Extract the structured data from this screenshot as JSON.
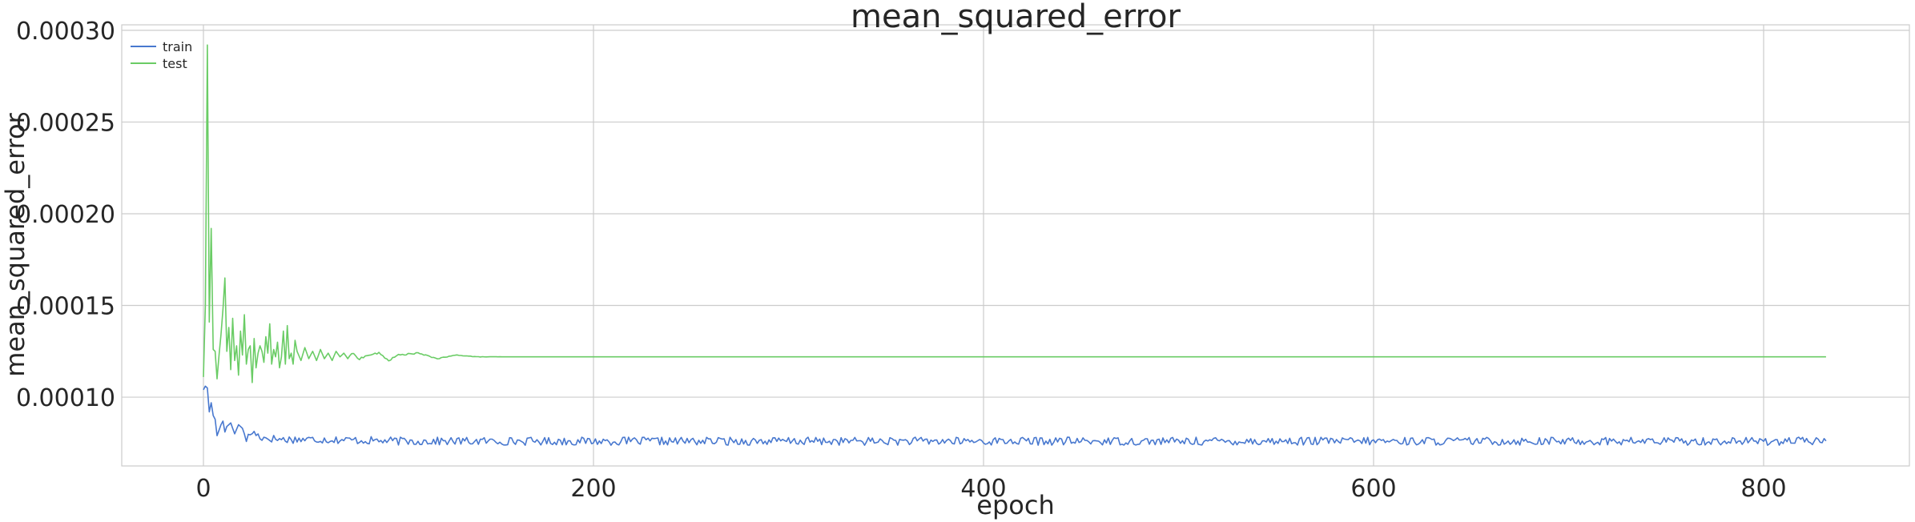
{
  "chart_data": {
    "type": "line",
    "title": "mean_squared_error",
    "xlabel": "epoch",
    "ylabel": "mean_squared_error",
    "xlim": [
      -52,
      2290
    ],
    "ylim": [
      6.25e-05,
      0.000303
    ],
    "x_ticks": [
      0,
      200,
      400,
      600,
      800
    ],
    "x_tick_labels": [
      "0",
      "200",
      "400",
      "600",
      "800"
    ],
    "y_ticks": [
      0.0001,
      0.00015,
      0.0002,
      0.00025,
      0.0003
    ],
    "y_tick_labels": [
      "0.00010",
      "0.00015",
      "0.00020",
      "0.00025",
      "0.00030"
    ],
    "grid": true,
    "legend_position": "top-left",
    "n_epochs": 833,
    "series": [
      {
        "name": "train",
        "color": "#4878cf",
        "keypoints": [
          [
            0,
            0.000104
          ],
          [
            1,
            0.000106
          ],
          [
            2,
            0.000105
          ],
          [
            3,
            9.2e-05
          ],
          [
            4,
            9.7e-05
          ],
          [
            5,
            9e-05
          ],
          [
            6,
            8.8e-05
          ],
          [
            7,
            7.9e-05
          ],
          [
            8,
            8.2e-05
          ],
          [
            9,
            8.5e-05
          ],
          [
            10,
            8.7e-05
          ],
          [
            11,
            8.1e-05
          ],
          [
            12,
            8.4e-05
          ],
          [
            14,
            8.6e-05
          ],
          [
            16,
            8e-05
          ],
          [
            18,
            8.5e-05
          ],
          [
            20,
            8.3e-05
          ],
          [
            22,
            7.7e-05
          ],
          [
            25,
            8.1e-05
          ],
          [
            30,
            7.8e-05
          ],
          [
            40,
            7.7e-05
          ],
          [
            60,
            7.7e-05
          ],
          [
            100,
            7.6e-05
          ],
          [
            200,
            7.6e-05
          ],
          [
            400,
            7.6e-05
          ],
          [
            600,
            7.6e-05
          ],
          [
            832,
            7.6e-05
          ]
        ],
        "noise_amplitude": 2.2e-06
      },
      {
        "name": "test",
        "color": "#6acc65",
        "keypoints": [
          [
            0,
            0.000111
          ],
          [
            1,
            0.00015
          ],
          [
            2,
            0.000292
          ],
          [
            3,
            0.000141
          ],
          [
            4,
            0.000192
          ],
          [
            5,
            0.000126
          ],
          [
            6,
            0.000125
          ],
          [
            7,
            0.00011
          ],
          [
            8,
            0.000123
          ],
          [
            9,
            0.000134
          ],
          [
            10,
            0.000148
          ],
          [
            11,
            0.000165
          ],
          [
            12,
            0.000125
          ],
          [
            13,
            0.000138
          ],
          [
            14,
            0.000115
          ],
          [
            15,
            0.000143
          ],
          [
            16,
            0.00012
          ],
          [
            17,
            0.000128
          ],
          [
            18,
            0.000112
          ],
          [
            19,
            0.000136
          ],
          [
            20,
            0.000123
          ],
          [
            21,
            0.000145
          ],
          [
            22,
            0.000118
          ],
          [
            23,
            0.000126
          ],
          [
            24,
            0.000128
          ],
          [
            25,
            0.000108
          ],
          [
            26,
            0.000132
          ],
          [
            27,
            0.000116
          ],
          [
            28,
            0.000124
          ],
          [
            29,
            0.000128
          ],
          [
            30,
            0.000125
          ],
          [
            31,
            0.000119
          ],
          [
            32,
            0.000133
          ],
          [
            33,
            0.000124
          ],
          [
            34,
            0.00014
          ],
          [
            35,
            0.000118
          ],
          [
            36,
            0.000126
          ],
          [
            37,
            0.000122
          ],
          [
            38,
            0.00013
          ],
          [
            39,
            0.000116
          ],
          [
            40,
            0.000122
          ],
          [
            41,
            0.000136
          ],
          [
            42,
            0.000118
          ],
          [
            43,
            0.000139
          ],
          [
            44,
            0.000121
          ],
          [
            45,
            0.000124
          ],
          [
            46,
            0.000118
          ],
          [
            47,
            0.000131
          ],
          [
            48,
            0.000125
          ],
          [
            50,
            0.00012
          ],
          [
            52,
            0.000127
          ],
          [
            54,
            0.000121
          ],
          [
            56,
            0.000125
          ],
          [
            58,
            0.00012
          ],
          [
            60,
            0.000126
          ],
          [
            62,
            0.000121
          ],
          [
            64,
            0.000124
          ],
          [
            66,
            0.00012
          ],
          [
            68,
            0.000125
          ],
          [
            70,
            0.000122
          ],
          [
            72,
            0.000124
          ],
          [
            74,
            0.000121
          ],
          [
            76,
            0.000124
          ],
          [
            80,
            0.000121
          ],
          [
            85,
            0.000123
          ],
          [
            90,
            0.000124
          ],
          [
            95,
            0.00012
          ],
          [
            100,
            0.000123
          ],
          [
            110,
            0.000124
          ],
          [
            120,
            0.000121
          ],
          [
            130,
            0.000123
          ],
          [
            140,
            0.000122
          ],
          [
            160,
            0.000122
          ],
          [
            200,
            0.000122
          ],
          [
            400,
            0.000122
          ],
          [
            600,
            0.000122
          ],
          [
            832,
            0.000122
          ]
        ],
        "noise_amplitude": 6e-07
      }
    ]
  }
}
